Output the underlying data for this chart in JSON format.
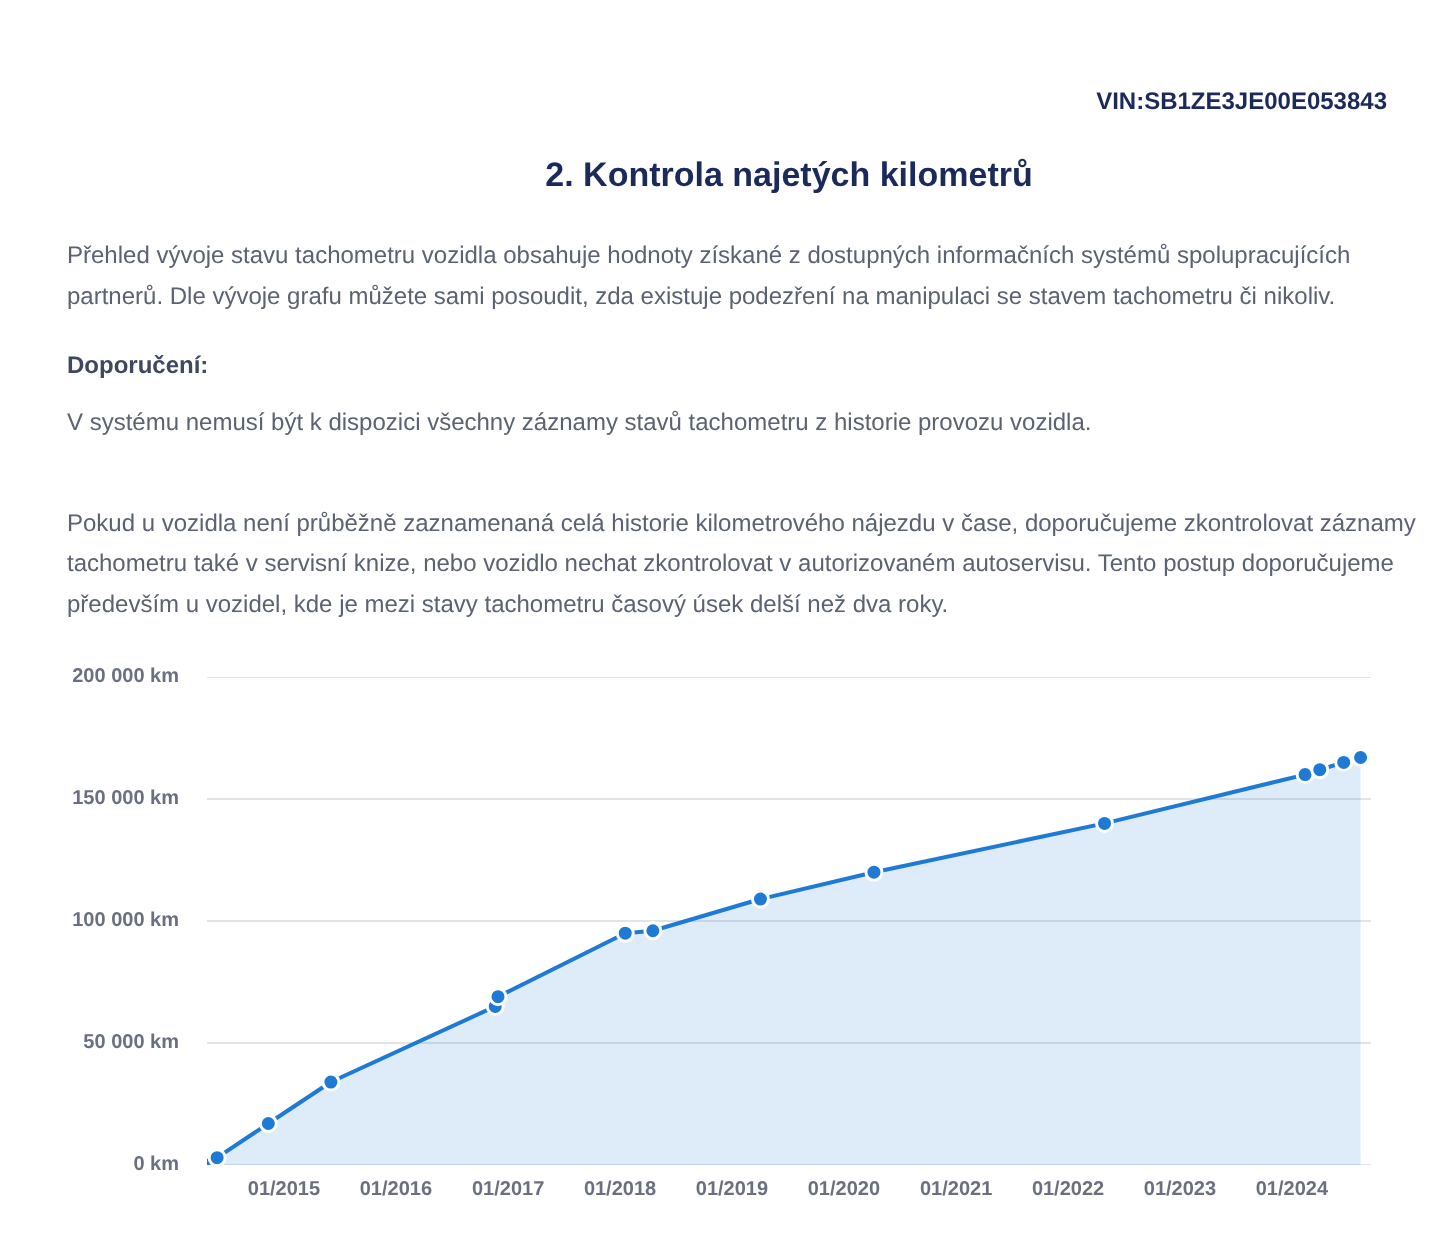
{
  "chart_data": {
    "type": "area",
    "title": "2. Kontrola najetých kilometrů",
    "annotations": [
      "VIN:SB1ZE3JE00E053843",
      "Přehled vývoje stavu tachometru vozidla obsahuje hodnoty získané z dostupných informačních systémů spolupracujících partnerů. Dle vývoje grafu můžete sami posoudit, zda existuje podezření na manipulaci se stavem tachometru či nikoliv.",
      "Doporučení:",
      "V systému nemusí být k dispozici všechny záznamy stavů tachometru z historie provozu vozidla.",
      "Pokud u vozidla není průběžně zaznamenaná celá historie kilometrového nájezdu v čase, doporučujeme zkontrolovat záznamy tachometru také v servisní knize, nebo vozidlo nechat zkontrolovat v autorizovaném autoservisu. Tento postup doporučujeme především u vozidel, kde je mezi stavy tachometru časový úsek delší než dva roky."
    ],
    "x": [
      "2014-04-25",
      "2014-05-28",
      "2014-11-11",
      "2015-06-03",
      "2016-11-20",
      "2016-11-29",
      "2018-01-18",
      "2018-04-18",
      "2019-04-04",
      "2020-04-08",
      "2022-04-30",
      "2024-02-13",
      "2024-04-01",
      "2024-06-18",
      "2024-08-12"
    ],
    "values": [
      0,
      3000,
      17000,
      34000,
      65000,
      69000,
      95000,
      96000,
      109000,
      120000,
      140000,
      160000,
      162000,
      165000,
      167000
    ],
    "color": "#1f7ad6",
    "xlim": [
      "2014-04-25",
      "2024-09-15"
    ],
    "xticks": [
      {
        "value": "2015-01",
        "label": "01/2015"
      },
      {
        "value": "2016-01",
        "label": "01/2016"
      },
      {
        "value": "2017-01",
        "label": "01/2017"
      },
      {
        "value": "2018-01",
        "label": "01/2018"
      },
      {
        "value": "2019-01",
        "label": "01/2019"
      },
      {
        "value": "2020-01",
        "label": "01/2020"
      },
      {
        "value": "2021-01",
        "label": "01/2021"
      },
      {
        "value": "2022-01",
        "label": "01/2022"
      },
      {
        "value": "2023-01",
        "label": "01/2023"
      },
      {
        "value": "2024-01",
        "label": "01/2024"
      }
    ],
    "ylim": [
      0,
      200000
    ],
    "yticks": [
      {
        "value": 0,
        "label": "0 km"
      },
      {
        "value": 50000,
        "label": "50 000 km"
      },
      {
        "value": 100000,
        "label": "100 000 km"
      },
      {
        "value": 150000,
        "label": "150 000 km"
      },
      {
        "value": 200000,
        "label": "200 000 km"
      }
    ],
    "grid": "y",
    "marker": "circle"
  }
}
